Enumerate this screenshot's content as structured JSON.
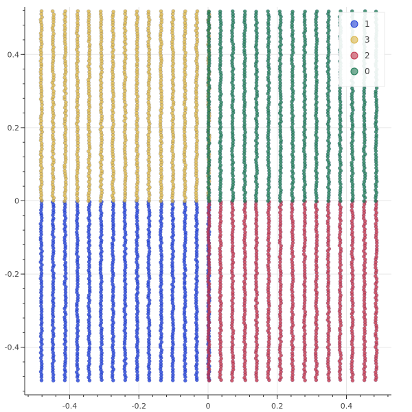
{
  "chart_data": {
    "type": "scatter",
    "title": "",
    "xlabel": "",
    "ylabel": "",
    "xlim": [
      -0.53,
      0.53
    ],
    "ylim": [
      -0.53,
      0.53
    ],
    "x_ticks": [
      -0.4,
      -0.2,
      0,
      0.2,
      0.4
    ],
    "x_tick_labels": [
      "-0.4",
      "-0.2",
      "0",
      "0.2",
      "0.4"
    ],
    "y_ticks": [
      -0.4,
      -0.2,
      0,
      0.2,
      0.4
    ],
    "y_tick_labels": [
      "-0.4",
      "-0.2",
      "0",
      "0.2",
      "0.4"
    ],
    "grid": true,
    "legend_position": "top-right",
    "x_columns": [
      -0.482,
      -0.448,
      -0.413,
      -0.378,
      -0.344,
      -0.309,
      -0.275,
      -0.24,
      -0.205,
      -0.171,
      -0.136,
      -0.102,
      -0.067,
      -0.033,
      0.002,
      0.036,
      0.071,
      0.106,
      0.14,
      0.175,
      0.209,
      0.244,
      0.279,
      0.313,
      0.348,
      0.382,
      0.417,
      0.452,
      0.486
    ],
    "series": [
      {
        "name": "1",
        "color": "#1f3fd6",
        "x_range": [
          -0.49,
          0.0
        ],
        "y_range": [
          -0.49,
          0.0
        ]
      },
      {
        "name": "3",
        "color": "#d9b446",
        "x_range": [
          -0.49,
          0.0
        ],
        "y_range": [
          0.0,
          0.52
        ]
      },
      {
        "name": "2",
        "color": "#c0334a",
        "x_range": [
          0.0,
          0.49
        ],
        "y_range": [
          -0.49,
          0.0
        ]
      },
      {
        "name": "0",
        "color": "#1f7a55",
        "x_range": [
          0.0,
          0.49
        ],
        "y_range": [
          0.0,
          0.52
        ]
      }
    ]
  }
}
